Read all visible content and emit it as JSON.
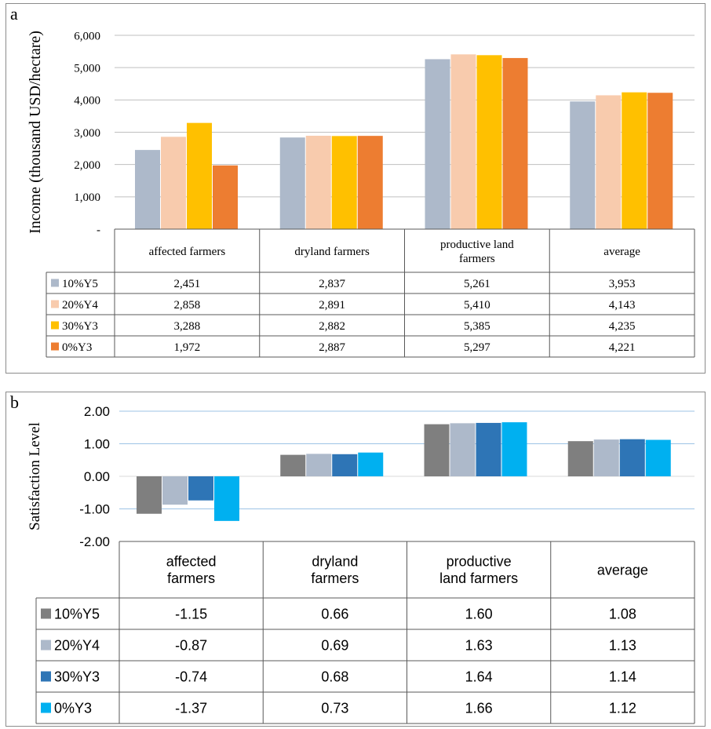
{
  "chart_data": [
    {
      "type": "bar",
      "panel_letter": "a",
      "ylabel": "Income (thousand USD/hectare)",
      "categories": [
        "affected farmers",
        "dryland farmers",
        "productive land farmers",
        "average"
      ],
      "category_labels": [
        [
          "affected farmers"
        ],
        [
          "dryland farmers"
        ],
        [
          "productive land",
          "farmers"
        ],
        [
          "average"
        ]
      ],
      "ylim": [
        0,
        6000
      ],
      "yticks": [
        0,
        1000,
        2000,
        3000,
        4000,
        5000,
        6000
      ],
      "ytick_labels": [
        "-",
        "1,000",
        "2,000",
        "3,000",
        "4,000",
        "5,000",
        "6,000"
      ],
      "grid": true,
      "legend": "data-table",
      "series": [
        {
          "name": "10%Y5",
          "color": "#adb9ca",
          "values": [
            2451,
            2837,
            5261,
            3953
          ],
          "value_labels": [
            "2,451",
            "2,837",
            "5,261",
            "3,953"
          ]
        },
        {
          "name": "20%Y4",
          "color": "#f8cbad",
          "values": [
            2858,
            2891,
            5410,
            4143
          ],
          "value_labels": [
            "2,858",
            "2,891",
            "5,410",
            "4,143"
          ]
        },
        {
          "name": "30%Y3",
          "color": "#ffc000",
          "values": [
            3288,
            2882,
            5385,
            4235
          ],
          "value_labels": [
            "3,288",
            "2,882",
            "5,385",
            "4,235"
          ]
        },
        {
          "name": "0%Y3",
          "color": "#ed7d31",
          "values": [
            1972,
            2887,
            5297,
            4221
          ],
          "value_labels": [
            "1,972",
            "2,887",
            "5,297",
            "4,221"
          ]
        }
      ]
    },
    {
      "type": "bar",
      "panel_letter": "b",
      "ylabel": "Satisfaction Level",
      "categories": [
        "affected farmers",
        "dryland farmers",
        "productive land farmers",
        "average"
      ],
      "category_labels": [
        [
          "affected",
          "farmers"
        ],
        [
          "dryland",
          "farmers"
        ],
        [
          "productive",
          "land farmers"
        ],
        [
          "average"
        ]
      ],
      "ylim": [
        -2,
        2
      ],
      "yticks": [
        -2,
        -1,
        0,
        1,
        2
      ],
      "ytick_labels": [
        "-2.00",
        "-1.00",
        "0.00",
        "1.00",
        "2.00"
      ],
      "grid": true,
      "legend": "data-table",
      "series": [
        {
          "name": "10%Y5",
          "color": "#7f7f7f",
          "values": [
            -1.15,
            0.66,
            1.6,
            1.08
          ],
          "value_labels": [
            "-1.15",
            "0.66",
            "1.60",
            "1.08"
          ]
        },
        {
          "name": "20%Y4",
          "color": "#adb9ca",
          "values": [
            -0.87,
            0.69,
            1.63,
            1.13
          ],
          "value_labels": [
            "-0.87",
            "0.69",
            "1.63",
            "1.13"
          ]
        },
        {
          "name": "30%Y3",
          "color": "#2e75b6",
          "values": [
            -0.74,
            0.68,
            1.64,
            1.14
          ],
          "value_labels": [
            "-0.74",
            "0.68",
            "1.64",
            "1.14"
          ]
        },
        {
          "name": "0%Y3",
          "color": "#00b0f0",
          "values": [
            -1.37,
            0.73,
            1.66,
            1.12
          ],
          "value_labels": [
            "-1.37",
            "0.73",
            "1.66",
            "1.12"
          ]
        }
      ]
    }
  ]
}
